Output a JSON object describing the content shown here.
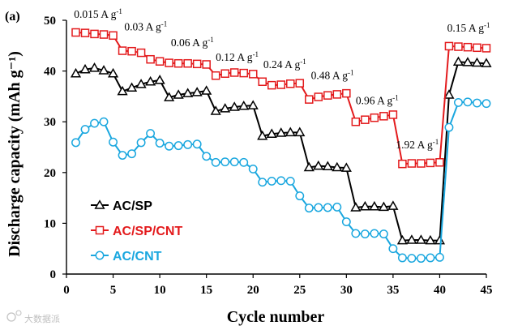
{
  "panel_label": "(a)",
  "watermark": "大数据派",
  "colors": {
    "axis": "#000000",
    "ac_sp": "#000000",
    "ac_sp_cnt": "#e31a1c",
    "ac_cnt": "#1aa7df",
    "watermark": "#b8b8b8"
  },
  "chart_data": {
    "type": "line",
    "xlabel": "Cycle number",
    "ylabel": "Discharge capacity (mAh g⁻¹)",
    "xlim": [
      0,
      45
    ],
    "ylim": [
      0,
      50
    ],
    "xticks": [
      0,
      5,
      10,
      15,
      20,
      25,
      30,
      35,
      40,
      45
    ],
    "yticks": [
      0,
      10,
      20,
      30,
      40,
      50
    ],
    "x": [
      1,
      2,
      3,
      4,
      5,
      6,
      7,
      8,
      9,
      10,
      11,
      12,
      13,
      14,
      15,
      16,
      17,
      18,
      19,
      20,
      21,
      22,
      23,
      24,
      25,
      26,
      27,
      28,
      29,
      30,
      31,
      32,
      33,
      34,
      35,
      36,
      37,
      38,
      39,
      40,
      41,
      42,
      43,
      44,
      45
    ],
    "series": [
      {
        "name": "AC/SP",
        "marker": "triangle",
        "color": "#000000",
        "values": [
          39.5,
          40.3,
          40.6,
          40.1,
          39.5,
          36.0,
          36.7,
          37.4,
          37.9,
          38.2,
          34.8,
          35.3,
          35.6,
          35.8,
          36.1,
          32.1,
          32.6,
          32.9,
          33.1,
          33.2,
          27.2,
          27.6,
          27.8,
          27.9,
          27.9,
          21.0,
          21.3,
          21.2,
          21.0,
          20.9,
          13.1,
          13.3,
          13.3,
          13.2,
          13.4,
          6.6,
          6.7,
          6.7,
          6.6,
          6.6,
          35.3,
          41.8,
          41.7,
          41.6,
          41.5
        ]
      },
      {
        "name": "AC/SP/CNT",
        "marker": "square",
        "color": "#e31a1c",
        "values": [
          47.6,
          47.5,
          47.3,
          47.2,
          47.0,
          44.0,
          43.9,
          43.6,
          42.3,
          41.9,
          41.6,
          41.5,
          41.5,
          41.4,
          41.3,
          39.1,
          39.5,
          39.7,
          39.6,
          39.4,
          37.9,
          37.2,
          37.3,
          37.5,
          37.6,
          34.4,
          34.9,
          35.2,
          35.4,
          35.6,
          30.0,
          30.4,
          30.8,
          31.1,
          31.4,
          21.7,
          21.8,
          21.8,
          21.9,
          22.0,
          44.9,
          44.8,
          44.7,
          44.6,
          44.5
        ]
      },
      {
        "name": "AC/CNT",
        "marker": "circle",
        "color": "#1aa7df",
        "values": [
          25.9,
          28.5,
          29.7,
          30.0,
          26.0,
          23.4,
          23.7,
          25.9,
          27.7,
          25.8,
          25.2,
          25.3,
          25.5,
          25.6,
          23.2,
          22.0,
          22.1,
          22.1,
          22.0,
          20.7,
          18.1,
          18.3,
          18.4,
          18.3,
          15.4,
          13.0,
          13.1,
          13.1,
          13.2,
          10.3,
          8.0,
          7.9,
          8.0,
          7.9,
          5.0,
          3.2,
          3.1,
          3.1,
          3.2,
          3.3,
          28.9,
          33.8,
          33.9,
          33.7,
          33.6
        ]
      }
    ],
    "legend": {
      "position": "lower-left",
      "entries": [
        "AC/SP",
        "AC/SP/CNT",
        "AC/CNT"
      ]
    },
    "annotations": [
      {
        "text": "0.015 A g",
        "sup": "-1",
        "x": 0.8,
        "y": 50.5
      },
      {
        "text": "0.03 A g",
        "sup": "-1",
        "x": 6.2,
        "y": 48.0
      },
      {
        "text": "0.06 A g",
        "sup": "-1",
        "x": 11.2,
        "y": 44.9
      },
      {
        "text": "0.12 A g",
        "sup": "-1",
        "x": 16.0,
        "y": 42.0
      },
      {
        "text": "0.24 A g",
        "sup": "-1",
        "x": 21.1,
        "y": 40.6
      },
      {
        "text": "0.48 A g",
        "sup": "-1",
        "x": 26.2,
        "y": 38.4
      },
      {
        "text": "0.96 A g",
        "sup": "-1",
        "x": 31.0,
        "y": 33.5
      },
      {
        "text": "1.92 A g",
        "sup": "-1",
        "x": 35.3,
        "y": 24.8
      },
      {
        "text": "0.15 A g",
        "sup": "-1",
        "x": 40.8,
        "y": 47.8
      }
    ]
  }
}
